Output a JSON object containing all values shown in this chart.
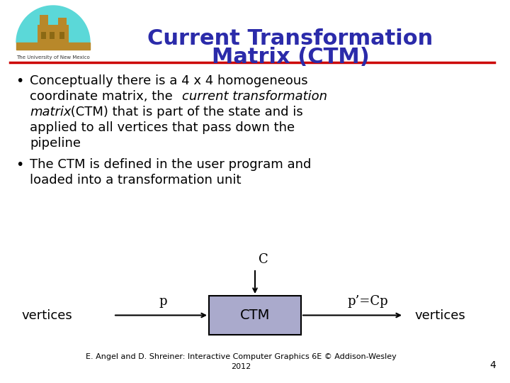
{
  "title_line1": "Current Transformation",
  "title_line2": "Matrix (CTM)",
  "title_color": "#2B2BAA",
  "title_fontsize": 22,
  "bg_color": "#FFFFFF",
  "separator_color": "#CC0000",
  "body_fontsize": 13,
  "body_color": "#000000",
  "footer_text": "E. Angel and D. Shreiner: Interactive Computer Graphics 6E © Addison-Wesley\n2012",
  "footer_fontsize": 8,
  "page_number": "4",
  "ctm_box_facecolor": "#AAAACC",
  "ctm_box_edgecolor": "#000000",
  "diagram_fontsize": 13,
  "logo_cyan": "#5BD8D8",
  "logo_brown": "#B8882A",
  "logo_text": "The University of New Mexico"
}
